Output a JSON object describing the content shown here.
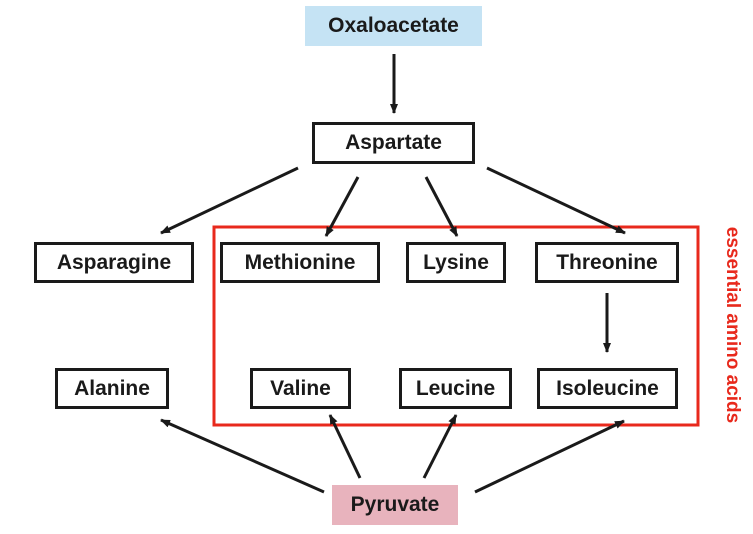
{
  "title": "",
  "nodes": {
    "oxaloacetate": "Oxaloacetate",
    "aspartate": "Aspartate",
    "asparagine": "Asparagine",
    "methionine": "Methionine",
    "lysine": "Lysine",
    "threonine": "Threonine",
    "alanine": "Alanine",
    "valine": "Valine",
    "leucine": "Leucine",
    "isoleucine": "Isoleucine",
    "pyruvate": "Pyruvate"
  },
  "group_label": "essential amino acids",
  "edges": [
    [
      "oxaloacetate",
      "aspartate"
    ],
    [
      "aspartate",
      "asparagine"
    ],
    [
      "aspartate",
      "methionine"
    ],
    [
      "aspartate",
      "lysine"
    ],
    [
      "aspartate",
      "threonine"
    ],
    [
      "threonine",
      "isoleucine"
    ],
    [
      "pyruvate",
      "alanine"
    ],
    [
      "pyruvate",
      "valine"
    ],
    [
      "pyruvate",
      "leucine"
    ],
    [
      "pyruvate",
      "isoleucine"
    ]
  ],
  "colors": {
    "oxaloacetate_fill": "#c5e3f4",
    "pyruvate_fill": "#e8b3bd",
    "essential_group_border": "#e8291c",
    "arrow": "#1a1a1a"
  }
}
